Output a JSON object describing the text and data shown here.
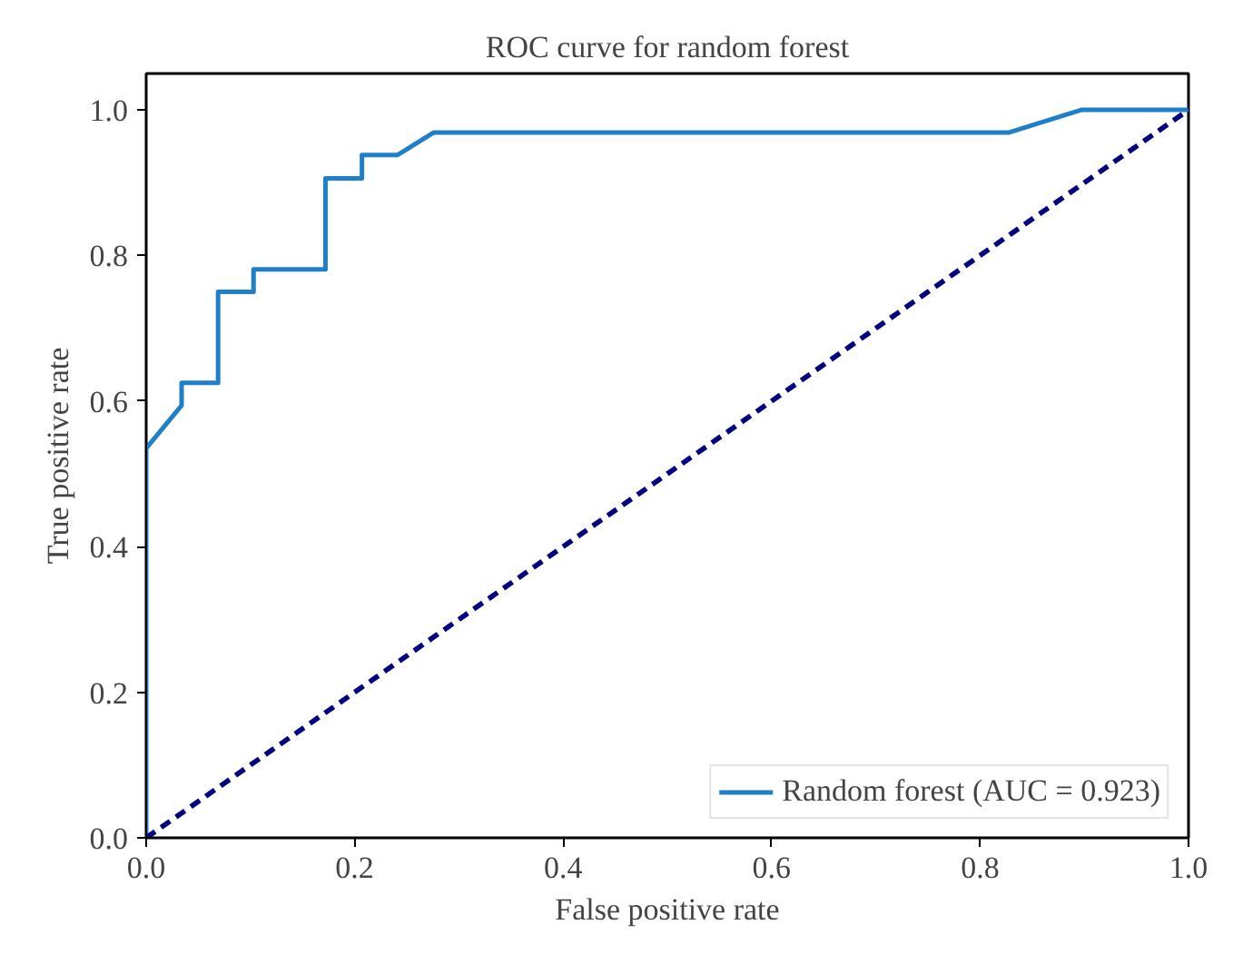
{
  "chart_data": {
    "type": "line",
    "title": "ROC curve for random forest",
    "xlabel": "False positive rate",
    "ylabel": "True positive rate",
    "xlim": [
      0,
      1
    ],
    "ylim": [
      0,
      1.05
    ],
    "xticks": [
      {
        "value": 0,
        "label": "0.0"
      },
      0.2,
      0.4,
      0.6,
      0.8,
      {
        "value": 1,
        "label": "1.0"
      }
    ],
    "yticks": [
      {
        "value": 0,
        "label": "0.0"
      },
      0.2,
      0.4,
      0.6,
      0.8,
      {
        "value": 1,
        "label": "1.0"
      }
    ],
    "series": [
      {
        "name": "Random forest (AUC = 0.923)",
        "color": "#1f7fc8",
        "line_style": "solid",
        "x": [
          0,
          0,
          0.034,
          0.034,
          0.069,
          0.069,
          0.103,
          0.103,
          0.172,
          0.172,
          0.207,
          0.207,
          0.241,
          0.276,
          0.828,
          0.897,
          1.0
        ],
        "values": [
          0,
          0.535,
          0.594,
          0.625,
          0.625,
          0.75,
          0.75,
          0.781,
          0.781,
          0.906,
          0.906,
          0.938,
          0.938,
          0.969,
          0.969,
          1.0,
          1.0
        ]
      },
      {
        "color": "#000080",
        "line_style": "dashed",
        "x": [
          0,
          1
        ],
        "values": [
          0,
          1
        ]
      }
    ],
    "legend": "bottom right",
    "grid": false
  }
}
